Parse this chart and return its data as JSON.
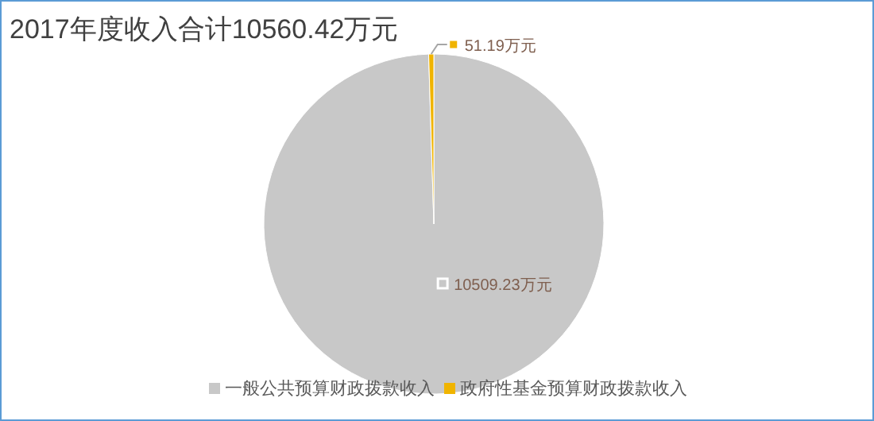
{
  "chart_data": {
    "type": "pie",
    "title": "2017年度收入合计10560.42万元",
    "categories": [
      "一般公共预算财政拨款收入",
      "政府性基金预算财政拨款收入"
    ],
    "values": [
      10509.23,
      51.19
    ],
    "colors": [
      "#c8c8c8",
      "#f0b400"
    ],
    "value_labels": [
      "10509.23万元",
      "51.19万元"
    ],
    "legend": "bottom"
  }
}
